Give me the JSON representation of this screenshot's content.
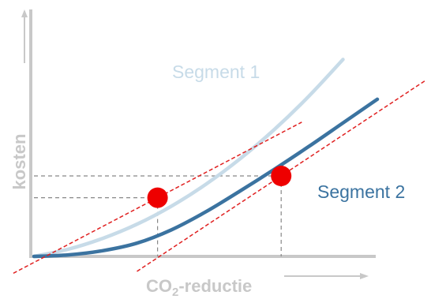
{
  "chart_data": {
    "type": "line",
    "xlabel": "CO2-reductie",
    "xlabel_main": "CO",
    "xlabel_sub": "2",
    "xlabel_rest": "-reductie",
    "ylabel": "kosten",
    "grid": false,
    "series": [
      {
        "name": "Segment 1",
        "color": "#c7dbe8",
        "x": [
          0,
          10,
          20,
          30,
          40,
          50,
          60,
          70,
          80,
          90
        ],
        "y": [
          0,
          3.8,
          9.5,
          17,
          26.5,
          38,
          51.5,
          67,
          84.5,
          104
        ]
      },
      {
        "name": "Segment 2",
        "color": "#3b73a0",
        "x": [
          0,
          10,
          20,
          30,
          40,
          50,
          60,
          70,
          80,
          90,
          100
        ],
        "y": [
          0,
          0.8,
          3,
          7,
          14,
          23.5,
          34.5,
          46,
          58,
          70.5,
          83
        ]
      }
    ],
    "tangent_points": [
      {
        "series": "Segment 1",
        "x": 36,
        "y": 31,
        "color": "#ee0000"
      },
      {
        "series": "Segment 2",
        "x": 72,
        "y": 42.5,
        "color": "#ee0000"
      }
    ],
    "tangent_line_color": "#e02020",
    "guide_line_color": "#888888",
    "axis_color": "#c8c8c8"
  }
}
